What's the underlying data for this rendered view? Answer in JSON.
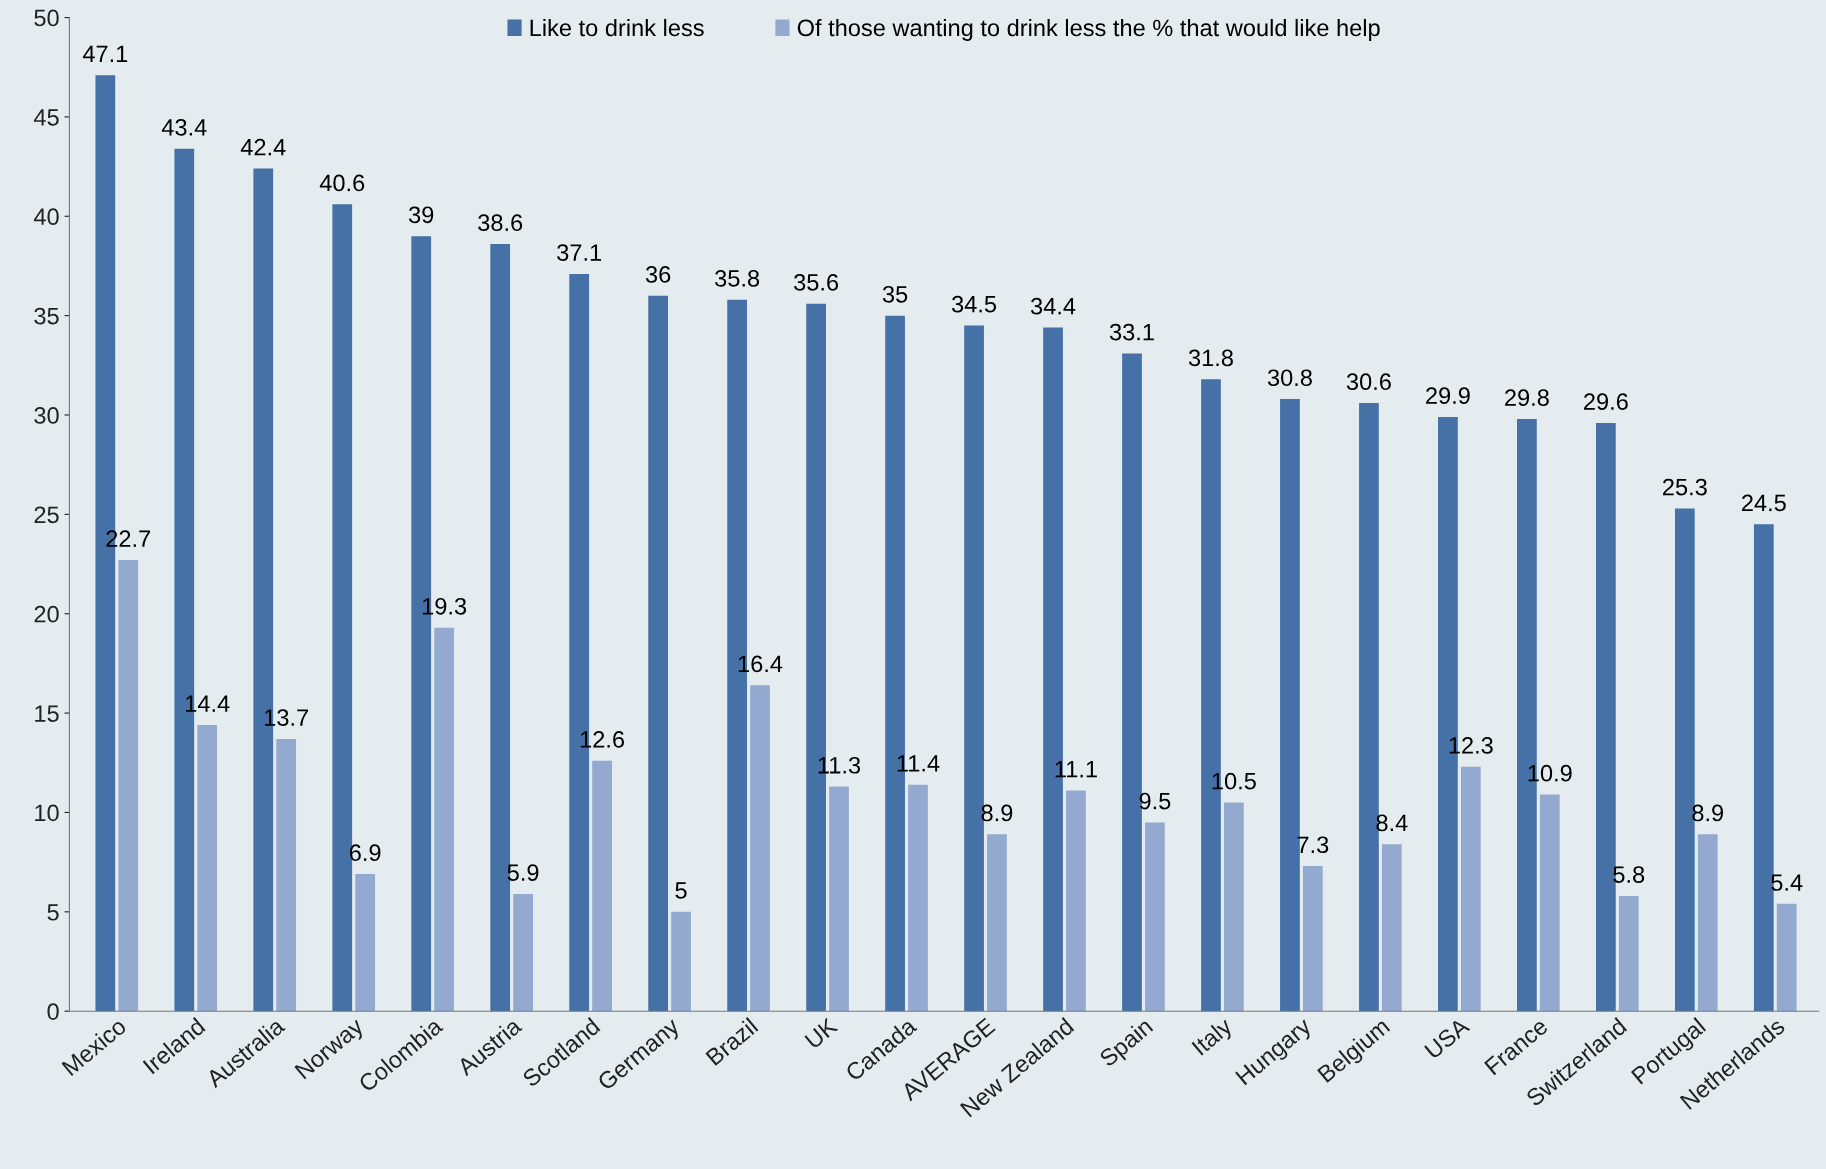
{
  "chart_data": {
    "type": "bar",
    "categories": [
      "Mexico",
      "Ireland",
      "Australia",
      "Norway",
      "Colombia",
      "Austria",
      "Scotland",
      "Germany",
      "Brazil",
      "UK",
      "Canada",
      "AVERAGE",
      "New Zealand",
      "Spain",
      "Italy",
      "Hungary",
      "Belgium",
      "USA",
      "France",
      "Switzerland",
      "Portugal",
      "Netherlands"
    ],
    "series": [
      {
        "name": "Like to drink less",
        "color": "#4571a6",
        "values": [
          47.1,
          43.4,
          42.4,
          40.6,
          39,
          38.6,
          37.1,
          36,
          35.8,
          35.6,
          35,
          34.5,
          34.4,
          33.1,
          31.8,
          30.8,
          30.6,
          29.9,
          29.8,
          29.6,
          25.3,
          24.5
        ]
      },
      {
        "name": "Of those wanting to drink less the % that would like help",
        "color": "#93a9d0",
        "values": [
          22.7,
          14.4,
          13.7,
          6.9,
          19.3,
          5.9,
          12.6,
          5,
          16.4,
          11.3,
          11.4,
          8.9,
          11.1,
          9.5,
          10.5,
          7.3,
          8.4,
          12.3,
          10.9,
          5.8,
          8.9,
          5.4
        ]
      }
    ],
    "ylim": [
      0,
      50
    ],
    "yticks": [
      0,
      5,
      10,
      15,
      20,
      25,
      30,
      35,
      40,
      45,
      50
    ],
    "grid": false,
    "legend": "top",
    "data_labels": true
  }
}
